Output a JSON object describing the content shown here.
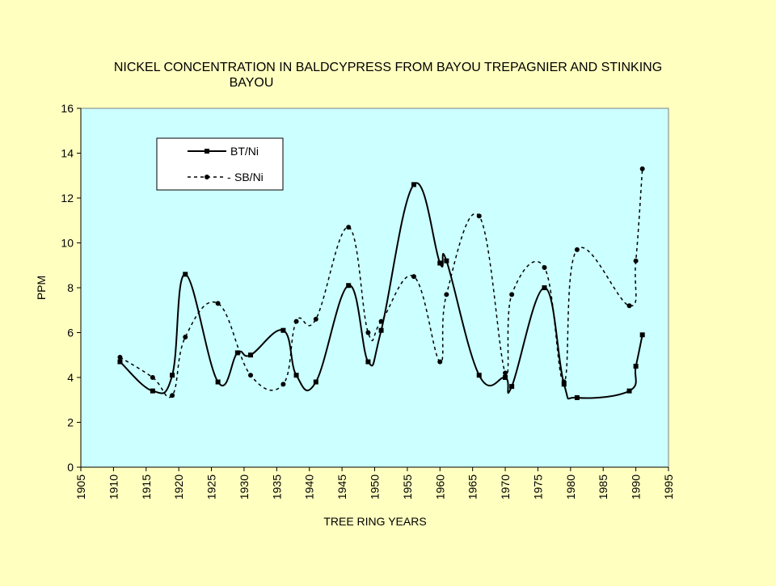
{
  "chart_data": {
    "type": "line",
    "title_lines": [
      "NICKEL CONCENTRATION IN BALDCYPRESS FROM BAYOU TREPAGNIER AND STINKING",
      "BAYOU"
    ],
    "xlabel": "TREE RING YEARS",
    "ylabel": "PPM",
    "xlim": [
      1905,
      1995
    ],
    "ylim": [
      0,
      16
    ],
    "xticks": [
      "1905",
      "1910",
      "1915",
      "1920",
      "1925",
      "1930",
      "1935",
      "1940",
      "1945",
      "1950",
      "1955",
      "1960",
      "1965",
      "1970",
      "1975",
      "1980",
      "1985",
      "1990",
      "1995"
    ],
    "yticks": [
      "0",
      "2",
      "4",
      "6",
      "8",
      "10",
      "12",
      "14",
      "16"
    ],
    "grid": false,
    "legend_position": "top-left",
    "series": [
      {
        "name": "BT/Ni",
        "style": "solid",
        "color": "#000000",
        "x": [
          1911,
          1916,
          1919,
          1921,
          1926,
          1929,
          1931,
          1936,
          1938,
          1941,
          1946,
          1949,
          1951,
          1956,
          1960,
          1961,
          1966,
          1970,
          1971,
          1976,
          1979,
          1981,
          1989,
          1990,
          1991
        ],
        "y": [
          4.7,
          3.4,
          4.1,
          8.6,
          3.8,
          5.1,
          5.0,
          6.1,
          4.1,
          3.8,
          8.1,
          4.7,
          6.1,
          12.6,
          9.1,
          9.2,
          4.1,
          4.0,
          3.6,
          8.0,
          3.7,
          3.1,
          3.4,
          4.5,
          5.9
        ]
      },
      {
        "name": "SB/Ni",
        "style": "dashed",
        "color": "#000000",
        "x": [
          1911,
          1916,
          1919,
          1921,
          1926,
          1931,
          1936,
          1938,
          1941,
          1946,
          1949,
          1951,
          1956,
          1960,
          1961,
          1966,
          1970,
          1971,
          1976,
          1979,
          1981,
          1989,
          1990,
          1991
        ],
        "y": [
          4.9,
          4.0,
          3.2,
          5.8,
          7.3,
          4.1,
          3.7,
          6.5,
          6.6,
          10.7,
          6.0,
          6.5,
          8.5,
          4.7,
          7.7,
          11.2,
          4.2,
          7.7,
          8.9,
          3.8,
          9.7,
          7.2,
          9.2,
          13.3
        ]
      }
    ]
  }
}
